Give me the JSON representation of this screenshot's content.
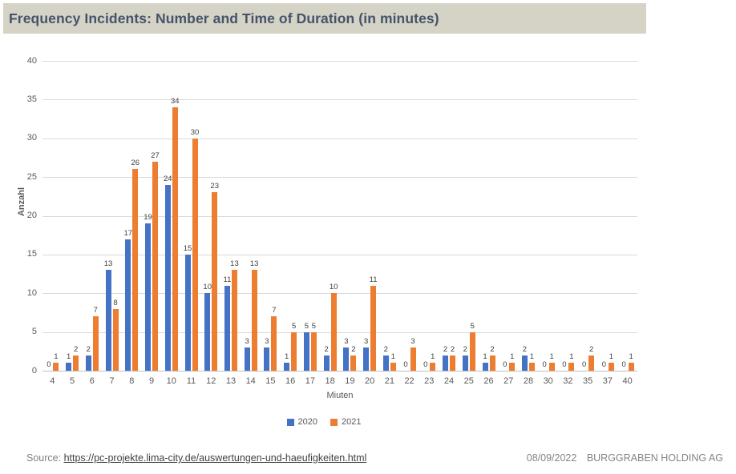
{
  "header": {
    "title": "Frequency Incidents: Number and Time of Duration (in minutes)"
  },
  "chart_data": {
    "type": "bar",
    "title": "Frequency Incidents: Number and Time of Duration (in minutes)",
    "categories": [
      "4",
      "5",
      "6",
      "7",
      "8",
      "9",
      "10",
      "11",
      "12",
      "13",
      "14",
      "15",
      "16",
      "17",
      "18",
      "19",
      "20",
      "21",
      "22",
      "23",
      "24",
      "25",
      "26",
      "27",
      "28",
      "30",
      "32",
      "35",
      "37",
      "40"
    ],
    "series": [
      {
        "name": "2020",
        "color": "#4472C4",
        "values": [
          0,
          1,
          2,
          13,
          17,
          19,
          24,
          15,
          10,
          11,
          3,
          3,
          1,
          5,
          2,
          3,
          3,
          2,
          0,
          0,
          2,
          2,
          1,
          0,
          2,
          0,
          0,
          0,
          0,
          0
        ]
      },
      {
        "name": "2021",
        "color": "#ED7D31",
        "values": [
          1,
          2,
          7,
          8,
          26,
          27,
          34,
          30,
          23,
          13,
          13,
          7,
          5,
          5,
          10,
          2,
          11,
          1,
          3,
          1,
          2,
          5,
          2,
          1,
          1,
          1,
          1,
          2,
          1,
          1
        ]
      }
    ],
    "xlabel": "Miuten",
    "ylabel": "Anzahl",
    "ylim": [
      0,
      40
    ],
    "yticks": [
      0,
      5,
      10,
      15,
      20,
      25,
      30,
      35,
      40
    ],
    "grid": true,
    "data_labels": true,
    "legend_position": "bottom"
  },
  "footer": {
    "source_label": "Source:",
    "source_link": "https://pc-projekte.lima-city.de/auswertungen-und-haeufigkeiten.html",
    "date": "08/09/2022",
    "company": "BURGGRABEN HOLDING AG"
  },
  "colors": {
    "series_2020": "#4472C4",
    "series_2021": "#ED7D31",
    "title_text": "#44546A",
    "title_background": "#D5D2C6",
    "gridline": "#D9D9D9",
    "axis_text": "#595959",
    "data_label": "#404040"
  }
}
